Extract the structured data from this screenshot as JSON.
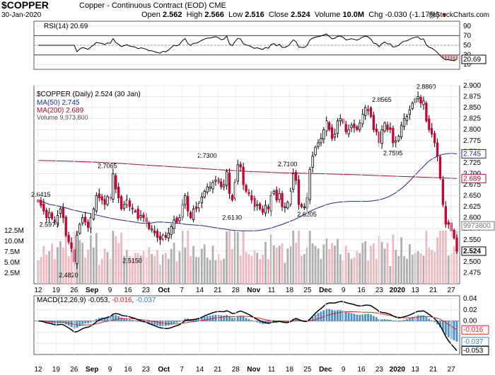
{
  "header": {
    "ticker": "$COPPER",
    "name": "Copper - Continuous Contract (EOD)",
    "exchange": "CME",
    "date": "30-Jan-2020",
    "open_label": "Open",
    "open": "2.562",
    "high_label": "High",
    "high": "2.566",
    "low_label": "Low",
    "low": "2.516",
    "close_label": "Close",
    "close": "2.524",
    "volume_label": "Volume",
    "volume": "10.0M",
    "chg_label": "Chg",
    "chg": "-0.030 (-1.17%)",
    "copyright": "@StockCharts.com"
  },
  "legends": {
    "rsi": "RSI(14) 20.69",
    "price": "$COPPER (Daily) 2.524 (30 Jan)",
    "ma50": "MA(50) 2.745",
    "ma200": "MA(200) 2.689",
    "volume": "Volume 9,973,800",
    "macd_prefix": "MACD(12,26,9)",
    "macd_v1": "-0.053",
    "macd_v2": "-0.016",
    "macd_v3": "-0.037"
  },
  "colors": {
    "up_candle": "#ffffff",
    "down_candle": "#cc0033",
    "ma50": "#1f2a8a",
    "ma200": "#a01030",
    "vol_up": "#b0b0b0",
    "vol_down": "#f0b8c0",
    "macd_line": "#000000",
    "signal_line": "#e02020",
    "histogram": "#4a90c8"
  },
  "chart_data": [
    {
      "type": "line",
      "title": "RSI(14) 20.69",
      "ylim": [
        0,
        100
      ],
      "y_ticks": [
        10,
        30,
        50,
        70,
        90
      ],
      "reference_lines": [
        30,
        50,
        70
      ],
      "current_value": 20.69
    },
    {
      "type": "candlestick",
      "title": "$COPPER (Daily) 2.524 (30 Jan)",
      "ylim": [
        2.45,
        2.9
      ],
      "y_ticks": [
        "2.475",
        "2.500",
        "2.525",
        "2.550",
        "2.575",
        "2.600",
        "2.625",
        "2.650",
        "2.675",
        "2.700",
        "2.725",
        "2.750",
        "2.775",
        "2.800",
        "2.825",
        "2.850",
        "2.875",
        "2.900"
      ],
      "annotations": [
        {
          "label": "2.6415",
          "value": 2.6415
        },
        {
          "label": "2.5970",
          "value": 2.597
        },
        {
          "label": "2.4820",
          "value": 2.482
        },
        {
          "label": "2.7065",
          "value": 2.7065
        },
        {
          "label": "2.5150",
          "value": 2.515
        },
        {
          "label": "2.7300",
          "value": 2.73
        },
        {
          "label": "2.6130",
          "value": 2.613
        },
        {
          "label": "2.7100",
          "value": 2.71
        },
        {
          "label": "2.6205",
          "value": 2.6205
        },
        {
          "label": "2.8565",
          "value": 2.8565
        },
        {
          "label": "2.7595",
          "value": 2.7595
        },
        {
          "label": "2.8860",
          "value": 2.886
        }
      ],
      "right_labels": [
        {
          "label": "2.745",
          "value": 2.745,
          "color": "#1f2a8a"
        },
        {
          "label": "2.689",
          "value": 2.689,
          "color": "#a01030"
        },
        {
          "label": "9973800",
          "value": 2.5815,
          "color": "#777777"
        },
        {
          "label": "2.524",
          "value": 2.524,
          "color": "#000000"
        }
      ],
      "volume_ticks": [
        "2.5M",
        "5.0M",
        "7.5M",
        "10.0M",
        "12.5M"
      ],
      "close": [
        2.635,
        2.628,
        2.615,
        2.6,
        2.612,
        2.598,
        2.59,
        2.605,
        2.62,
        2.6,
        2.56,
        2.545,
        2.53,
        2.5,
        2.56,
        2.585,
        2.6,
        2.59,
        2.578,
        2.6,
        2.62,
        2.65,
        2.645,
        2.64,
        2.63,
        2.648,
        2.645,
        2.7,
        2.665,
        2.645,
        2.62,
        2.63,
        2.64,
        2.625,
        2.62,
        2.615,
        2.598,
        2.605,
        2.6,
        2.59,
        2.575,
        2.575,
        2.565,
        2.555,
        2.55,
        2.56,
        2.555,
        2.565,
        2.58,
        2.595,
        2.59,
        2.6,
        2.63,
        2.65,
        2.615,
        2.6,
        2.62,
        2.62,
        2.632,
        2.647,
        2.66,
        2.67,
        2.67,
        2.68,
        2.685,
        2.68,
        2.67,
        2.675,
        2.705,
        2.655,
        2.64,
        2.68,
        2.72,
        2.715,
        2.675,
        2.66,
        2.655,
        2.64,
        2.625,
        2.63,
        2.62,
        2.612,
        2.628,
        2.62,
        2.65,
        2.66,
        2.64,
        2.655,
        2.625,
        2.625,
        2.635,
        2.66,
        2.7,
        2.685,
        2.63,
        2.625,
        2.625,
        2.645,
        2.71,
        2.74,
        2.76,
        2.77,
        2.78,
        2.8,
        2.82,
        2.8,
        2.78,
        2.79,
        2.82,
        2.825,
        2.815,
        2.795,
        2.8,
        2.81,
        2.805,
        2.8,
        2.815,
        2.835,
        2.85,
        2.845,
        2.83,
        2.8,
        2.795,
        2.77,
        2.8,
        2.815,
        2.8,
        2.8,
        2.77,
        2.775,
        2.785,
        2.81,
        2.825,
        2.83,
        2.845,
        2.86,
        2.87,
        2.875,
        2.86,
        2.865,
        2.82,
        2.8,
        2.79,
        2.77,
        2.74,
        2.69,
        2.63,
        2.585,
        2.585,
        2.57,
        2.554,
        2.524
      ],
      "ma50": [
        2.64,
        2.635,
        2.63,
        2.628,
        2.625,
        2.622,
        2.618,
        2.615,
        2.612,
        2.61,
        2.607,
        2.604,
        2.601,
        2.598,
        2.596,
        2.594,
        2.592,
        2.59,
        2.588,
        2.587,
        2.588,
        2.59,
        2.59,
        2.589,
        2.588,
        2.587,
        2.585,
        2.584,
        2.583,
        2.582,
        2.58,
        2.578,
        2.576,
        2.574,
        2.572,
        2.571,
        2.57,
        2.57,
        2.57,
        2.571,
        2.573,
        2.576,
        2.58,
        2.584,
        2.589,
        2.594,
        2.6,
        2.607,
        2.614,
        2.62,
        2.625,
        2.63,
        2.633,
        2.635,
        2.636,
        2.637,
        2.637,
        2.637,
        2.637,
        2.638,
        2.64,
        2.643,
        2.648,
        2.655,
        2.664,
        2.675,
        2.688,
        2.702,
        2.715,
        2.728,
        2.736,
        2.742,
        2.745,
        2.746,
        2.745
      ],
      "ma200": [
        2.73,
        2.728,
        2.725,
        2.72,
        2.715,
        2.71,
        2.705,
        2.702,
        2.7,
        2.698,
        2.695,
        2.692,
        2.689
      ]
    },
    {
      "type": "bar",
      "title": "MACD(12,26,9) -0.053, -0.016, -0.037",
      "ylim": [
        -0.06,
        0.045
      ],
      "y_ticks": [
        "0.04",
        "0.02",
        "0.00",
        "-0.02",
        "-0.04"
      ],
      "current_values": {
        "macd": -0.053,
        "signal": -0.016,
        "histogram": -0.037
      }
    }
  ],
  "x_axis": {
    "labels": [
      "12",
      "19",
      "26",
      "Sep",
      "9",
      "16",
      "23",
      "Oct",
      "7",
      "14",
      "21",
      "28",
      "Nov",
      "11",
      "18",
      "25",
      "Dec",
      "9",
      "16",
      "23",
      "2020",
      "13",
      "21",
      "27"
    ],
    "bold": [
      "Sep",
      "Oct",
      "Nov",
      "Dec",
      "2020"
    ]
  }
}
